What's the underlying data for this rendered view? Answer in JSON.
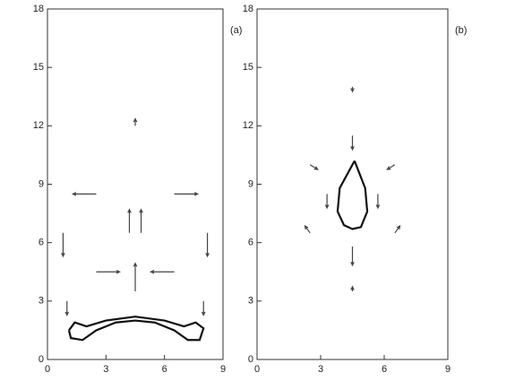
{
  "chart_data": [
    {
      "type": "quiver",
      "label": "(a)",
      "xlim": [
        0,
        9
      ],
      "ylim": [
        0,
        18
      ],
      "xticks": [
        0,
        3,
        6,
        9
      ],
      "yticks": [
        0,
        3,
        6,
        9,
        12,
        15,
        18
      ],
      "interface": {
        "x": [
          1.1,
          1.4,
          2.0,
          3.0,
          4.5,
          6.0,
          7.0,
          7.6,
          8.0,
          7.8,
          7.2,
          6.5,
          5.5,
          4.5,
          3.5,
          2.5,
          1.8,
          1.2,
          1.1
        ],
        "y": [
          1.5,
          1.9,
          1.7,
          2.0,
          2.2,
          2.0,
          1.7,
          1.9,
          1.6,
          1.0,
          1.0,
          1.5,
          1.9,
          2.0,
          1.9,
          1.5,
          1.0,
          1.1,
          1.5
        ]
      },
      "vectors": {
        "x": [
          2.5,
          0.8,
          2.5,
          4.2,
          6.5,
          8.2,
          6.5,
          4.8,
          4.5,
          4.5,
          1.0,
          8.0
        ],
        "y": [
          8.5,
          6.5,
          4.5,
          6.5,
          8.5,
          6.5,
          4.5,
          6.5,
          3.5,
          12.0,
          3.0,
          3.0
        ],
        "u": [
          -1.0,
          0,
          1.0,
          0,
          1.0,
          0,
          -1.0,
          0,
          0,
          0,
          0,
          0
        ],
        "v": [
          0,
          -1.0,
          0,
          1.0,
          0,
          -1.0,
          0,
          1.0,
          1.2,
          0.3,
          -0.6,
          -0.6
        ]
      }
    },
    {
      "type": "quiver",
      "label": "(b)",
      "xlim": [
        0,
        9
      ],
      "ylim": [
        0,
        18
      ],
      "xticks": [
        0,
        3,
        6,
        9
      ],
      "yticks": [
        0,
        3,
        6,
        9,
        12,
        15,
        18
      ],
      "interface": {
        "x": [
          4.6,
          5.1,
          5.2,
          4.9,
          4.5,
          4.1,
          3.8,
          3.9,
          4.6
        ],
        "y": [
          10.2,
          8.8,
          7.6,
          6.8,
          6.7,
          6.9,
          7.6,
          8.8,
          10.2
        ]
      },
      "vectors": {
        "x": [
          4.5,
          4.5,
          3.3,
          5.7,
          2.5,
          6.5,
          2.5,
          6.5,
          4.5,
          4.5
        ],
        "y": [
          11.5,
          5.8,
          8.5,
          8.5,
          10.0,
          10.0,
          6.5,
          6.5,
          14.0,
          3.5
        ],
        "u": [
          0,
          0,
          0,
          0,
          0.3,
          -0.3,
          -0.2,
          0.2,
          0,
          0
        ],
        "v": [
          -0.6,
          -0.8,
          -0.6,
          -0.6,
          -0.2,
          -0.2,
          0.3,
          0.3,
          -0.2,
          0.2
        ]
      }
    }
  ]
}
